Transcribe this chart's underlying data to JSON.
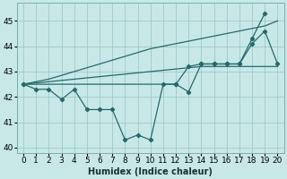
{
  "xlabel": "Humidex (Indice chaleur)",
  "bg_color": "#c8e8e8",
  "grid_color": "#a0c8c8",
  "line_color": "#236b6b",
  "x": [
    0,
    1,
    2,
    3,
    4,
    5,
    6,
    7,
    8,
    9,
    10,
    11,
    12,
    13,
    14,
    15,
    16,
    17,
    18,
    19,
    20
  ],
  "line_smooth1": [
    42.5,
    42.55,
    42.6,
    42.65,
    42.7,
    42.75,
    42.8,
    42.85,
    42.9,
    42.95,
    43.0,
    43.05,
    43.1,
    43.15,
    43.2,
    43.2,
    43.2,
    43.2,
    43.2,
    43.2,
    43.2
  ],
  "line_smooth2": [
    42.5,
    42.6,
    42.7,
    42.85,
    43.0,
    43.15,
    43.3,
    43.45,
    43.6,
    43.75,
    43.9,
    44.0,
    44.1,
    44.2,
    44.3,
    44.4,
    44.5,
    44.6,
    44.7,
    44.8,
    45.0
  ],
  "line_jagged1": [
    42.5,
    42.3,
    42.3,
    41.9,
    42.3,
    41.5,
    41.5,
    41.5,
    40.3,
    40.5,
    40.3,
    42.5,
    42.5,
    42.2,
    43.3,
    43.3,
    43.3,
    43.3,
    44.1,
    44.6,
    43.3
  ],
  "line_jagged2": [
    42.5,
    null,
    null,
    null,
    null,
    null,
    null,
    null,
    null,
    null,
    null,
    null,
    42.5,
    43.2,
    43.3,
    43.3,
    43.3,
    43.3,
    44.3,
    45.3,
    null
  ],
  "ylim": [
    39.8,
    45.7
  ],
  "yticks": [
    40,
    41,
    42,
    43,
    44,
    45
  ],
  "xlim": [
    -0.5,
    20.5
  ],
  "xlabel_fontsize": 7,
  "tick_fontsize": 6.5
}
